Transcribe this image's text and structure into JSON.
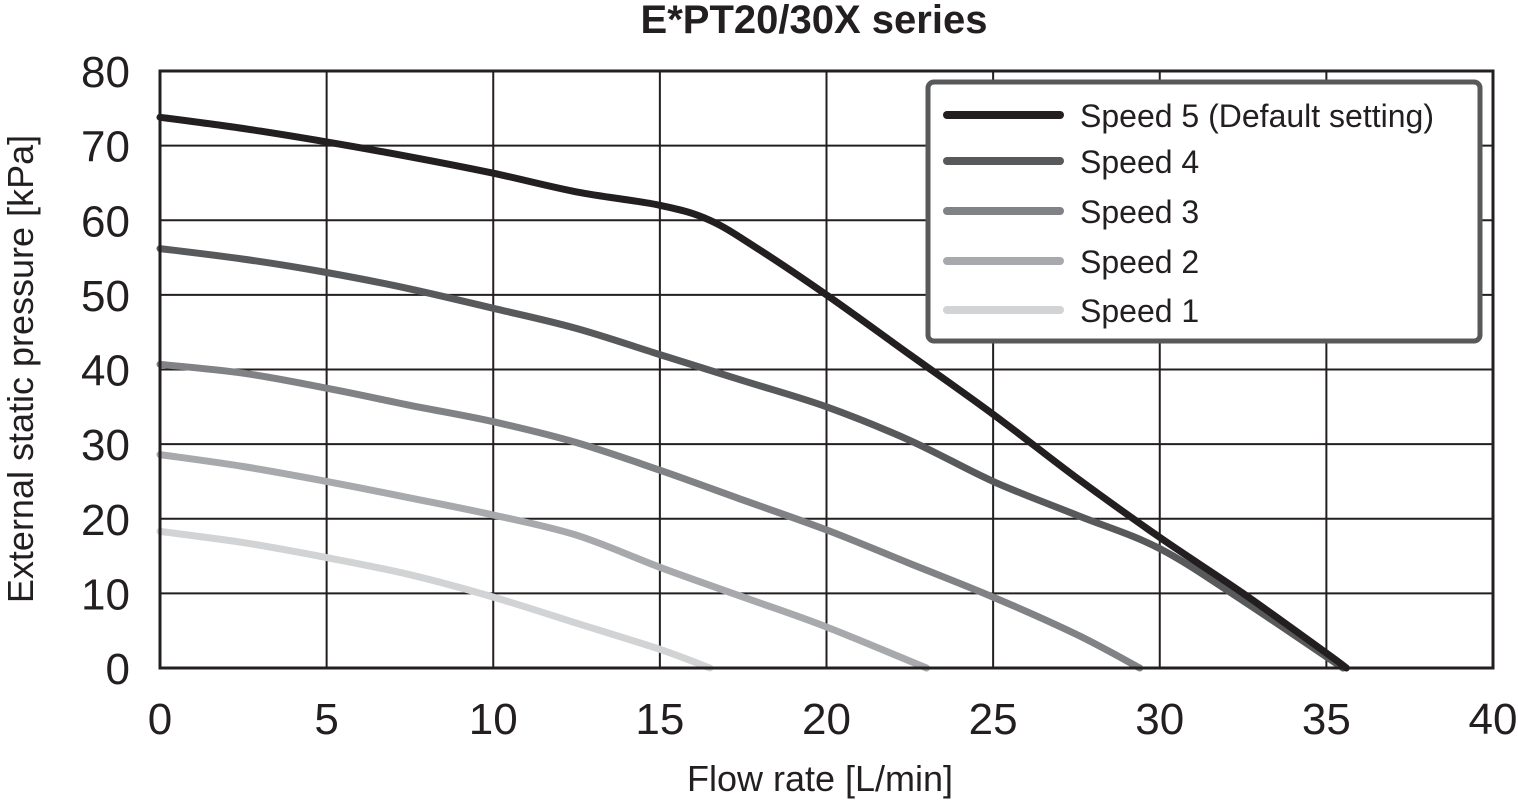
{
  "chart_data": {
    "type": "line",
    "title": "E*PT20/30X series",
    "xlabel": "Flow rate [L/min]",
    "ylabel": "External static pressure [kPa]",
    "xlim": [
      0,
      40
    ],
    "ylim": [
      0,
      80
    ],
    "xticks": [
      0,
      5,
      10,
      15,
      20,
      25,
      30,
      35,
      40
    ],
    "yticks": [
      0,
      10,
      20,
      30,
      40,
      50,
      60,
      70,
      80
    ],
    "grid": true,
    "legend_position": "top-right",
    "series": [
      {
        "name": "Speed 5 (Default setting)",
        "color": "#231f20",
        "x": [
          0,
          2.5,
          5,
          7.5,
          10,
          12.5,
          15,
          16.5,
          18,
          20,
          22.5,
          25,
          27.5,
          30,
          32.5,
          35,
          35.6
        ],
        "y": [
          73.8,
          72.3,
          70.5,
          68.5,
          66.3,
          63.8,
          62.0,
          60.0,
          56.0,
          50.0,
          42.0,
          34.0,
          25.5,
          17.5,
          10.0,
          2.0,
          0
        ]
      },
      {
        "name": "Speed 4",
        "color": "#58595b",
        "x": [
          0,
          2.5,
          5,
          7.5,
          10,
          12.5,
          15,
          17.5,
          20,
          22.5,
          25,
          27.5,
          30,
          32.5,
          35,
          35.5
        ],
        "y": [
          56.2,
          54.8,
          53.0,
          50.8,
          48.2,
          45.5,
          42.0,
          38.5,
          35.0,
          30.5,
          25.0,
          20.5,
          16.0,
          9.0,
          1.5,
          0
        ]
      },
      {
        "name": "Speed 3",
        "color": "#808285",
        "x": [
          0,
          2.5,
          5,
          7.5,
          10,
          12.5,
          15,
          17.5,
          20,
          22.5,
          25,
          27.5,
          29.4
        ],
        "y": [
          40.7,
          39.5,
          37.5,
          35.2,
          33.0,
          30.2,
          26.5,
          22.5,
          18.5,
          14.0,
          9.5,
          4.5,
          0
        ]
      },
      {
        "name": "Speed 2",
        "color": "#a7a9ac",
        "x": [
          0,
          2.5,
          5,
          7.5,
          10,
          12.5,
          15,
          17.5,
          20,
          23.0
        ],
        "y": [
          28.6,
          27.0,
          25.0,
          22.8,
          20.5,
          17.8,
          13.5,
          9.5,
          5.5,
          0
        ]
      },
      {
        "name": "Speed 1",
        "color": "#d1d3d4",
        "x": [
          0,
          2.5,
          5,
          7.5,
          10,
          12.5,
          15,
          16.5
        ],
        "y": [
          18.3,
          16.8,
          14.8,
          12.5,
          9.5,
          6.0,
          2.5,
          0
        ]
      }
    ]
  }
}
